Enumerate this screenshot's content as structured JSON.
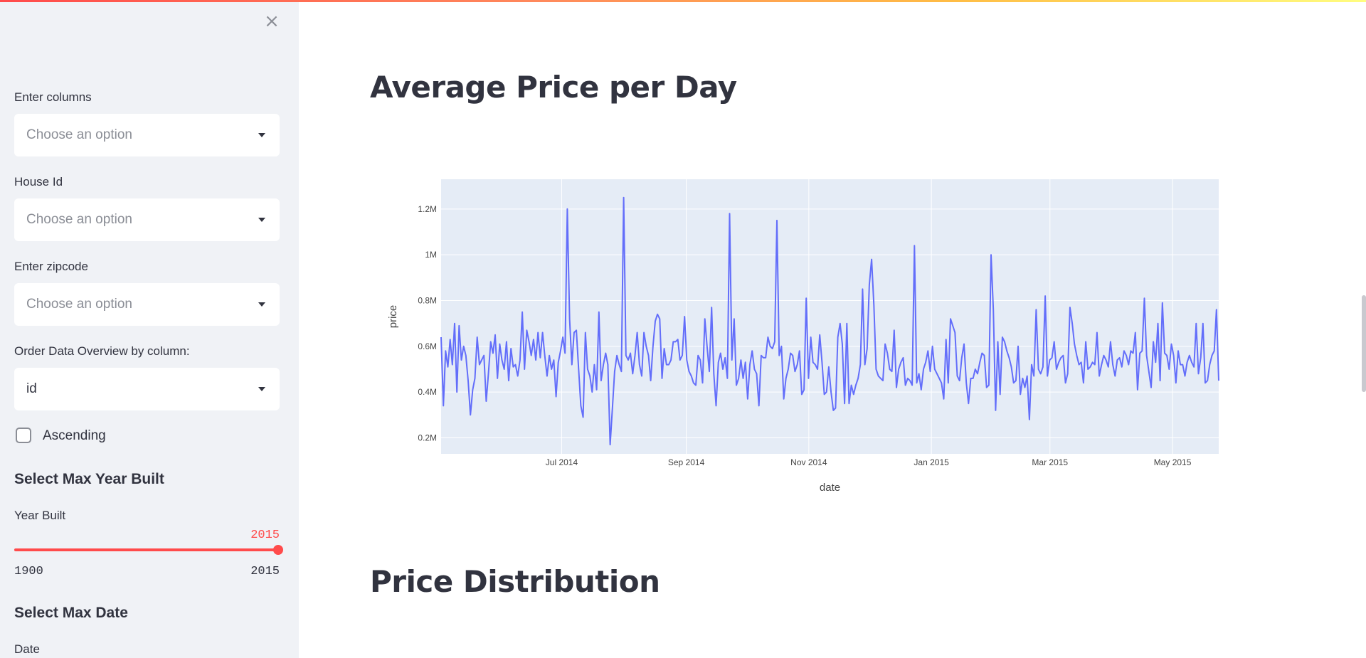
{
  "sidebar": {
    "close_icon": "×",
    "columns_label": "Enter columns",
    "columns_placeholder": "Choose an option",
    "house_id_label": "House Id",
    "house_id_placeholder": "Choose an option",
    "zipcode_label": "Enter zipcode",
    "zipcode_placeholder": "Choose an option",
    "order_label": "Order Data Overview by column:",
    "order_value": "id",
    "ascending_label": "Ascending",
    "ascending_checked": false,
    "max_year_heading": "Select Max Year Built",
    "year_built_label": "Year Built",
    "year_built_value": "2015",
    "year_built_min": "1900",
    "year_built_max": "2015",
    "max_date_heading": "Select Max Date",
    "date_label": "Date"
  },
  "main": {
    "section1_title": "Average Price per Day",
    "section2_title": "Price Distribution"
  },
  "colors": {
    "accent": "#ff4b4b",
    "line": "#636efa",
    "plot_bg": "#e5ecf6"
  },
  "chart_data": {
    "type": "line",
    "xlabel": "date",
    "ylabel": "price",
    "x_start": "2014-05-02",
    "x_end": "2015-05-24",
    "x_ticks": [
      {
        "date": "2014-07-01",
        "label": "Jul 2014"
      },
      {
        "date": "2014-09-01",
        "label": "Sep 2014"
      },
      {
        "date": "2014-11-01",
        "label": "Nov 2014"
      },
      {
        "date": "2015-01-01",
        "label": "Jan 2015"
      },
      {
        "date": "2015-03-01",
        "label": "Mar 2015"
      },
      {
        "date": "2015-05-01",
        "label": "May 2015"
      }
    ],
    "y_ticks": [
      {
        "value": 200000,
        "label": "0.2M"
      },
      {
        "value": 400000,
        "label": "0.4M"
      },
      {
        "value": 600000,
        "label": "0.6M"
      },
      {
        "value": 800000,
        "label": "0.8M"
      },
      {
        "value": 1000000,
        "label": "1M"
      },
      {
        "value": 1200000,
        "label": "1.2M"
      }
    ],
    "ylim": [
      130000,
      1330000
    ],
    "grid": true,
    "series": [
      {
        "values": [
          640000,
          340000,
          580000,
          510000,
          630000,
          520000,
          700000,
          400000,
          690000,
          540000,
          600000,
          560000,
          450000,
          300000,
          410000,
          460000,
          640000,
          520000,
          540000,
          560000,
          360000,
          480000,
          620000,
          570000,
          650000,
          460000,
          610000,
          540000,
          500000,
          620000,
          450000,
          590000,
          510000,
          520000,
          470000,
          540000,
          750000,
          500000,
          670000,
          620000,
          560000,
          630000,
          540000,
          660000,
          550000,
          660000,
          560000,
          470000,
          560000,
          500000,
          540000,
          380000,
          530000,
          580000,
          640000,
          570000,
          1200000,
          720000,
          520000,
          660000,
          670000,
          500000,
          340000,
          290000,
          660000,
          500000,
          470000,
          400000,
          520000,
          410000,
          750000,
          450000,
          520000,
          570000,
          520000,
          170000,
          330000,
          490000,
          560000,
          520000,
          490000,
          1250000,
          560000,
          540000,
          570000,
          480000,
          560000,
          660000,
          520000,
          470000,
          660000,
          600000,
          560000,
          450000,
          600000,
          710000,
          740000,
          720000,
          460000,
          590000,
          520000,
          520000,
          540000,
          620000,
          620000,
          630000,
          540000,
          560000,
          730000,
          540000,
          490000,
          470000,
          440000,
          430000,
          560000,
          540000,
          440000,
          720000,
          600000,
          490000,
          770000,
          480000,
          340000,
          530000,
          570000,
          500000,
          550000,
          460000,
          1180000,
          540000,
          720000,
          430000,
          460000,
          540000,
          460000,
          530000,
          370000,
          520000,
          580000,
          500000,
          480000,
          340000,
          560000,
          550000,
          550000,
          640000,
          600000,
          590000,
          620000,
          1150000,
          560000,
          600000,
          370000,
          460000,
          500000,
          570000,
          560000,
          490000,
          520000,
          580000,
          390000,
          410000,
          810000,
          460000,
          640000,
          530000,
          520000,
          500000,
          650000,
          530000,
          390000,
          400000,
          510000,
          400000,
          320000,
          330000,
          640000,
          700000,
          610000,
          350000,
          700000,
          350000,
          430000,
          390000,
          430000,
          460000,
          520000,
          850000,
          520000,
          590000,
          870000,
          980000,
          780000,
          500000,
          470000,
          460000,
          450000,
          610000,
          570000,
          500000,
          490000,
          670000,
          420000,
          500000,
          530000,
          550000,
          430000,
          460000,
          450000,
          430000,
          1040000,
          440000,
          480000,
          410000,
          500000,
          530000,
          580000,
          490000,
          600000,
          500000,
          480000,
          460000,
          440000,
          370000,
          630000,
          440000,
          720000,
          690000,
          660000,
          470000,
          450000,
          550000,
          610000,
          440000,
          350000,
          460000,
          460000,
          500000,
          480000,
          530000,
          570000,
          560000,
          420000,
          430000,
          1000000,
          760000,
          320000,
          620000,
          390000,
          640000,
          620000,
          580000,
          550000,
          510000,
          440000,
          450000,
          600000,
          390000,
          460000,
          420000,
          470000,
          280000,
          520000,
          470000,
          760000,
          500000,
          480000,
          510000,
          820000,
          470000,
          540000,
          550000,
          620000,
          500000,
          530000,
          550000,
          560000,
          440000,
          480000,
          770000,
          700000,
          610000,
          560000,
          520000,
          530000,
          440000,
          620000,
          500000,
          510000,
          530000,
          520000,
          660000,
          470000,
          520000,
          560000,
          540000,
          510000,
          620000,
          520000,
          470000,
          540000,
          550000,
          510000,
          580000,
          560000,
          520000,
          580000,
          570000,
          660000,
          410000,
          570000,
          580000,
          810000,
          560000,
          490000,
          420000,
          620000,
          530000,
          700000,
          450000,
          790000,
          570000,
          560000,
          500000,
          610000,
          560000,
          440000,
          580000,
          520000,
          520000,
          470000,
          530000,
          560000,
          530000,
          510000,
          700000,
          480000,
          550000,
          700000,
          440000,
          450000,
          520000,
          560000,
          580000,
          760000,
          450000
        ]
      }
    ]
  }
}
